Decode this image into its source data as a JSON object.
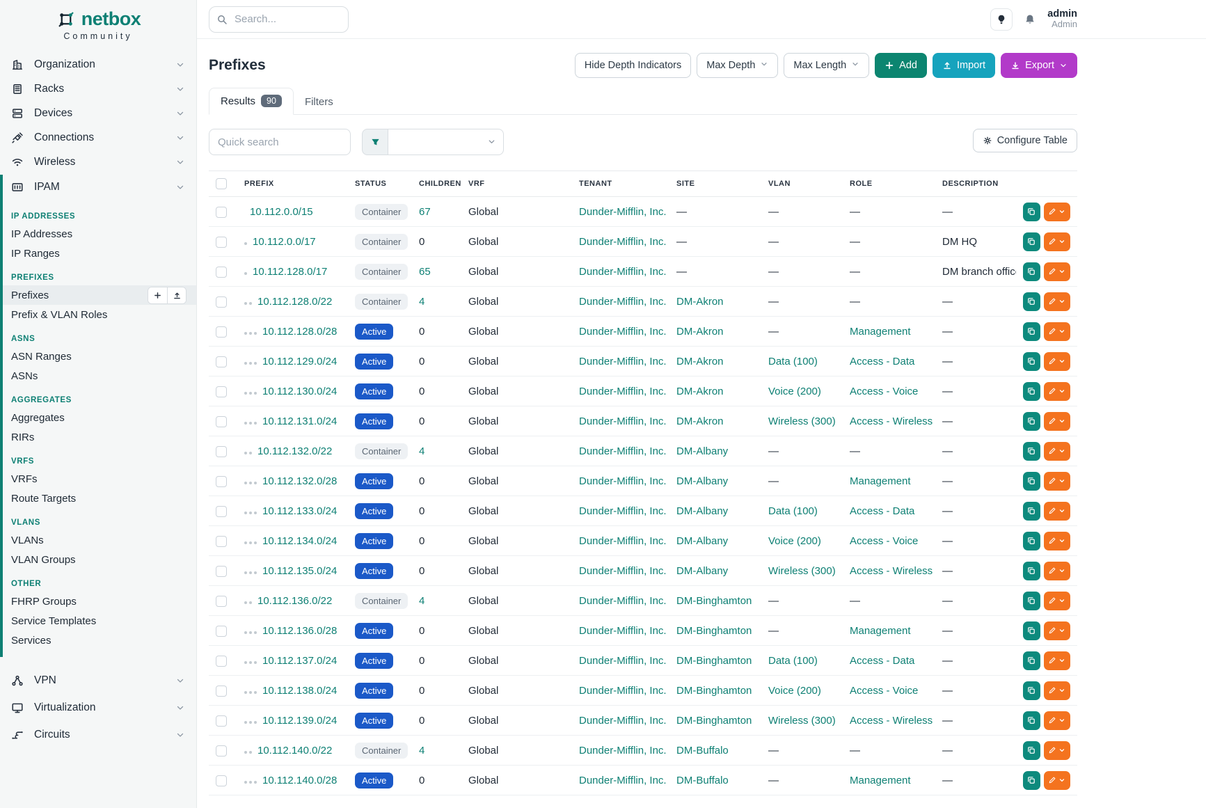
{
  "brand": {
    "name": "netbox",
    "tagline": "Community"
  },
  "topbar": {
    "search_placeholder": "Search...",
    "user_name": "admin",
    "user_role": "Admin"
  },
  "sidebar": {
    "top_items": [
      {
        "label": "Organization",
        "icon": "building-icon"
      },
      {
        "label": "Racks",
        "icon": "rack-icon"
      },
      {
        "label": "Devices",
        "icon": "devices-icon"
      },
      {
        "label": "Connections",
        "icon": "connections-icon"
      },
      {
        "label": "Wireless",
        "icon": "wireless-icon"
      }
    ],
    "ipam_label": "IPAM",
    "ipam_icon": "ipam-icon",
    "ipam_entries": [
      {
        "kind": "header",
        "label": "IP ADDRESSES"
      },
      {
        "kind": "item",
        "label": "IP Addresses"
      },
      {
        "kind": "item",
        "label": "IP Ranges"
      },
      {
        "kind": "header",
        "label": "PREFIXES"
      },
      {
        "kind": "item",
        "label": "Prefixes",
        "selected": true,
        "buttons": true
      },
      {
        "kind": "item",
        "label": "Prefix & VLAN Roles"
      },
      {
        "kind": "header",
        "label": "ASNS"
      },
      {
        "kind": "item",
        "label": "ASN Ranges"
      },
      {
        "kind": "item",
        "label": "ASNs"
      },
      {
        "kind": "header",
        "label": "AGGREGATES"
      },
      {
        "kind": "item",
        "label": "Aggregates"
      },
      {
        "kind": "item",
        "label": "RIRs"
      },
      {
        "kind": "header",
        "label": "VRFS"
      },
      {
        "kind": "item",
        "label": "VRFs"
      },
      {
        "kind": "item",
        "label": "Route Targets"
      },
      {
        "kind": "header",
        "label": "VLANS"
      },
      {
        "kind": "item",
        "label": "VLANs"
      },
      {
        "kind": "item",
        "label": "VLAN Groups"
      },
      {
        "kind": "header",
        "label": "OTHER"
      },
      {
        "kind": "item",
        "label": "FHRP Groups"
      },
      {
        "kind": "item",
        "label": "Service Templates"
      },
      {
        "kind": "item",
        "label": "Services"
      }
    ],
    "bottom_items": [
      {
        "label": "VPN",
        "icon": "vpn-icon"
      },
      {
        "label": "Virtualization",
        "icon": "virtualization-icon"
      },
      {
        "label": "Circuits",
        "icon": "circuits-icon"
      }
    ]
  },
  "page": {
    "title": "Prefixes",
    "controls": {
      "hide_depth": "Hide Depth Indicators",
      "max_depth": "Max Depth",
      "max_length": "Max Length",
      "add": "Add",
      "import": "Import",
      "export": "Export"
    },
    "tabs": {
      "results": "Results",
      "results_count": "90",
      "filters": "Filters"
    },
    "quick_search_placeholder": "Quick search",
    "configure_table": "Configure Table"
  },
  "colors": {
    "accent_teal": "#0e8074",
    "active_badge_blue": "#1b59c8",
    "add_green": "#0c8570",
    "import_cyan": "#16a3bd",
    "export_purple": "#b23ac9",
    "edit_orange": "#f4731f"
  },
  "table": {
    "columns": [
      "PREFIX",
      "STATUS",
      "CHILDREN",
      "VRF",
      "TENANT",
      "SITE",
      "VLAN",
      "ROLE",
      "DESCRIPTION"
    ],
    "rows": [
      {
        "depth": 0,
        "prefix": "10.112.0.0/15",
        "status": "Container",
        "children": "67",
        "children_link": true,
        "vrf": "Global",
        "tenant": "Dunder-Mifflin, Inc.",
        "site": "—",
        "vlan": "—",
        "role": "—",
        "description": "—"
      },
      {
        "depth": 1,
        "prefix": "10.112.0.0/17",
        "status": "Container",
        "children": "0",
        "children_link": false,
        "vrf": "Global",
        "tenant": "Dunder-Mifflin, Inc.",
        "site": "—",
        "vlan": "—",
        "role": "—",
        "description": "DM HQ"
      },
      {
        "depth": 1,
        "prefix": "10.112.128.0/17",
        "status": "Container",
        "children": "65",
        "children_link": true,
        "vrf": "Global",
        "tenant": "Dunder-Mifflin, Inc.",
        "site": "—",
        "vlan": "—",
        "role": "—",
        "description": "DM branch offices"
      },
      {
        "depth": 2,
        "prefix": "10.112.128.0/22",
        "status": "Container",
        "children": "4",
        "children_link": true,
        "vrf": "Global",
        "tenant": "Dunder-Mifflin, Inc.",
        "site": "DM-Akron",
        "vlan": "—",
        "role": "—",
        "description": "—"
      },
      {
        "depth": 3,
        "prefix": "10.112.128.0/28",
        "status": "Active",
        "children": "0",
        "children_link": false,
        "vrf": "Global",
        "tenant": "Dunder-Mifflin, Inc.",
        "site": "DM-Akron",
        "vlan": "—",
        "role": "Management",
        "description": "—"
      },
      {
        "depth": 3,
        "prefix": "10.112.129.0/24",
        "status": "Active",
        "children": "0",
        "children_link": false,
        "vrf": "Global",
        "tenant": "Dunder-Mifflin, Inc.",
        "site": "DM-Akron",
        "vlan": "Data (100)",
        "role": "Access - Data",
        "description": "—"
      },
      {
        "depth": 3,
        "prefix": "10.112.130.0/24",
        "status": "Active",
        "children": "0",
        "children_link": false,
        "vrf": "Global",
        "tenant": "Dunder-Mifflin, Inc.",
        "site": "DM-Akron",
        "vlan": "Voice (200)",
        "role": "Access - Voice",
        "description": "—"
      },
      {
        "depth": 3,
        "prefix": "10.112.131.0/24",
        "status": "Active",
        "children": "0",
        "children_link": false,
        "vrf": "Global",
        "tenant": "Dunder-Mifflin, Inc.",
        "site": "DM-Akron",
        "vlan": "Wireless (300)",
        "role": "Access - Wireless",
        "description": "—"
      },
      {
        "depth": 2,
        "prefix": "10.112.132.0/22",
        "status": "Container",
        "children": "4",
        "children_link": true,
        "vrf": "Global",
        "tenant": "Dunder-Mifflin, Inc.",
        "site": "DM-Albany",
        "vlan": "—",
        "role": "—",
        "description": "—"
      },
      {
        "depth": 3,
        "prefix": "10.112.132.0/28",
        "status": "Active",
        "children": "0",
        "children_link": false,
        "vrf": "Global",
        "tenant": "Dunder-Mifflin, Inc.",
        "site": "DM-Albany",
        "vlan": "—",
        "role": "Management",
        "description": "—"
      },
      {
        "depth": 3,
        "prefix": "10.112.133.0/24",
        "status": "Active",
        "children": "0",
        "children_link": false,
        "vrf": "Global",
        "tenant": "Dunder-Mifflin, Inc.",
        "site": "DM-Albany",
        "vlan": "Data (100)",
        "role": "Access - Data",
        "description": "—"
      },
      {
        "depth": 3,
        "prefix": "10.112.134.0/24",
        "status": "Active",
        "children": "0",
        "children_link": false,
        "vrf": "Global",
        "tenant": "Dunder-Mifflin, Inc.",
        "site": "DM-Albany",
        "vlan": "Voice (200)",
        "role": "Access - Voice",
        "description": "—"
      },
      {
        "depth": 3,
        "prefix": "10.112.135.0/24",
        "status": "Active",
        "children": "0",
        "children_link": false,
        "vrf": "Global",
        "tenant": "Dunder-Mifflin, Inc.",
        "site": "DM-Albany",
        "vlan": "Wireless (300)",
        "role": "Access - Wireless",
        "description": "—"
      },
      {
        "depth": 2,
        "prefix": "10.112.136.0/22",
        "status": "Container",
        "children": "4",
        "children_link": true,
        "vrf": "Global",
        "tenant": "Dunder-Mifflin, Inc.",
        "site": "DM-Binghamton",
        "vlan": "—",
        "role": "—",
        "description": "—"
      },
      {
        "depth": 3,
        "prefix": "10.112.136.0/28",
        "status": "Active",
        "children": "0",
        "children_link": false,
        "vrf": "Global",
        "tenant": "Dunder-Mifflin, Inc.",
        "site": "DM-Binghamton",
        "vlan": "—",
        "role": "Management",
        "description": "—"
      },
      {
        "depth": 3,
        "prefix": "10.112.137.0/24",
        "status": "Active",
        "children": "0",
        "children_link": false,
        "vrf": "Global",
        "tenant": "Dunder-Mifflin, Inc.",
        "site": "DM-Binghamton",
        "vlan": "Data (100)",
        "role": "Access - Data",
        "description": "—"
      },
      {
        "depth": 3,
        "prefix": "10.112.138.0/24",
        "status": "Active",
        "children": "0",
        "children_link": false,
        "vrf": "Global",
        "tenant": "Dunder-Mifflin, Inc.",
        "site": "DM-Binghamton",
        "vlan": "Voice (200)",
        "role": "Access - Voice",
        "description": "—"
      },
      {
        "depth": 3,
        "prefix": "10.112.139.0/24",
        "status": "Active",
        "children": "0",
        "children_link": false,
        "vrf": "Global",
        "tenant": "Dunder-Mifflin, Inc.",
        "site": "DM-Binghamton",
        "vlan": "Wireless (300)",
        "role": "Access - Wireless",
        "description": "—"
      },
      {
        "depth": 2,
        "prefix": "10.112.140.0/22",
        "status": "Container",
        "children": "4",
        "children_link": true,
        "vrf": "Global",
        "tenant": "Dunder-Mifflin, Inc.",
        "site": "DM-Buffalo",
        "vlan": "—",
        "role": "—",
        "description": "—"
      },
      {
        "depth": 3,
        "prefix": "10.112.140.0/28",
        "status": "Active",
        "children": "0",
        "children_link": false,
        "vrf": "Global",
        "tenant": "Dunder-Mifflin, Inc.",
        "site": "DM-Buffalo",
        "vlan": "—",
        "role": "Management",
        "description": "—"
      }
    ]
  }
}
